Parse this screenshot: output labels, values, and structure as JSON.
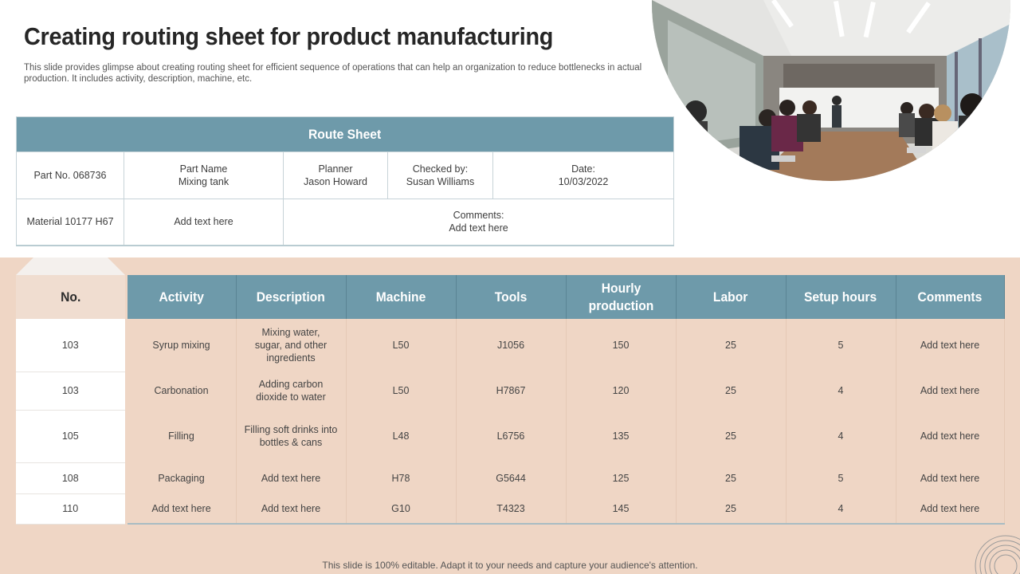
{
  "title": "Creating routing sheet for product manufacturing",
  "subtitle": "This slide provides glimpse about creating routing sheet for efficient sequence of operations that can help an organization to reduce bottlenecks in actual production. It includes activity, description, machine, etc.",
  "route_sheet": {
    "heading": "Route Sheet",
    "part_no": "Part No. 068736",
    "part_name_label": "Part Name",
    "part_name_value": "Mixing tank",
    "planner_label": "Planner",
    "planner_value": "Jason Howard",
    "checked_label": "Checked by:",
    "checked_value": "Susan Williams",
    "date_label": "Date:",
    "date_value": "10/03/2022",
    "material": "Material  10177 H67",
    "material_note": "Add text here",
    "comments_label": "Comments:",
    "comments_value": "Add text here"
  },
  "table": {
    "headers": [
      "No.",
      "Activity",
      "Description",
      "Machine",
      "Tools",
      "Hourly production",
      "Labor",
      "Setup hours",
      "Comments"
    ],
    "rows": [
      [
        "103",
        "Syrup mixing",
        "Mixing water, sugar, and other ingredients",
        "L50",
        "J1056",
        "150",
        "25",
        "5",
        "Add text here"
      ],
      [
        "103",
        "Carbonation",
        "Adding carbon dioxide to water",
        "L50",
        "H7867",
        "120",
        "25",
        "4",
        "Add text here"
      ],
      [
        "105",
        "Filling",
        "Filling soft drinks into bottles & cans",
        "L48",
        "L6756",
        "135",
        "25",
        "4",
        "Add text here"
      ],
      [
        "108",
        "Packaging",
        "Add text here",
        "H78",
        "G5644",
        "125",
        "25",
        "5",
        "Add text here"
      ],
      [
        "110",
        "Add text here",
        "Add text here",
        "G10",
        "T4323",
        "145",
        "25",
        "4",
        "Add text here"
      ]
    ]
  },
  "footer": "This slide is 100% editable. Adapt it to your needs and capture your audience's attention.",
  "colors": {
    "header_teal": "#6e9aaa",
    "band_peach": "#efd6c5",
    "title": "#262626"
  }
}
